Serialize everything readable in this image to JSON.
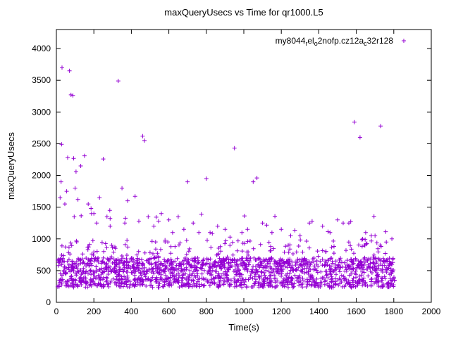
{
  "chart_data": {
    "type": "scatter",
    "title": "maxQueryUsecs vs Time for qr1000.L5",
    "xlabel": "Time(s)",
    "ylabel": "maxQueryUsecs",
    "xlim": [
      0,
      2000
    ],
    "ylim": [
      0,
      4300
    ],
    "xticks": [
      0,
      200,
      400,
      600,
      800,
      1000,
      1200,
      1400,
      1600,
      1800,
      2000
    ],
    "yticks": [
      0,
      500,
      1000,
      1500,
      2000,
      2500,
      3000,
      3500,
      4000
    ],
    "grid": false,
    "legend": {
      "position": "top-right",
      "label_plain": "my8044_rel_o2nofp.cz12a_c32r128",
      "segments": [
        {
          "text": "my8044"
        },
        {
          "text": "r",
          "sub": true
        },
        {
          "text": "el"
        },
        {
          "text": "o",
          "sub": true
        },
        {
          "text": "2nofp.cz12a"
        },
        {
          "text": "c",
          "sub": true
        },
        {
          "text": "32r128"
        }
      ]
    },
    "marker": {
      "shape": "plus",
      "color": "#9400d3",
      "size": 3
    },
    "seed": 42,
    "clusters": [
      {
        "count": 850,
        "x": [
          5,
          1805
        ],
        "y": [
          470,
          700
        ]
      },
      {
        "count": 600,
        "x": [
          5,
          1805
        ],
        "y": [
          235,
          390
        ]
      },
      {
        "count": 160,
        "x": [
          5,
          1805
        ],
        "y": [
          390,
          470
        ]
      },
      {
        "count": 140,
        "x": [
          5,
          1805
        ],
        "y": [
          700,
          1000
        ]
      },
      {
        "count": 18,
        "x": [
          30,
          1805
        ],
        "y": [
          1000,
          1400
        ]
      }
    ],
    "outliers": [
      [
        20,
        1650
      ],
      [
        25,
        1900
      ],
      [
        28,
        2490
      ],
      [
        30,
        3700
      ],
      [
        45,
        1550
      ],
      [
        55,
        1750
      ],
      [
        60,
        2280
      ],
      [
        70,
        3650
      ],
      [
        78,
        3270
      ],
      [
        88,
        3260
      ],
      [
        92,
        2270
      ],
      [
        95,
        1350
      ],
      [
        100,
        1800
      ],
      [
        105,
        2060
      ],
      [
        115,
        1620
      ],
      [
        130,
        2150
      ],
      [
        150,
        2310
      ],
      [
        170,
        1550
      ],
      [
        185,
        1480
      ],
      [
        200,
        1400
      ],
      [
        215,
        1250
      ],
      [
        230,
        1650
      ],
      [
        250,
        2260
      ],
      [
        270,
        1350
      ],
      [
        285,
        1450
      ],
      [
        330,
        3490
      ],
      [
        350,
        1800
      ],
      [
        365,
        1250
      ],
      [
        380,
        1600
      ],
      [
        420,
        1670
      ],
      [
        440,
        1280
      ],
      [
        460,
        2620
      ],
      [
        470,
        2550
      ],
      [
        490,
        1350
      ],
      [
        520,
        1200
      ],
      [
        545,
        1280
      ],
      [
        560,
        1400
      ],
      [
        600,
        1300
      ],
      [
        620,
        1100
      ],
      [
        650,
        1350
      ],
      [
        680,
        1150
      ],
      [
        700,
        1900
      ],
      [
        730,
        1250
      ],
      [
        760,
        1100
      ],
      [
        800,
        1950
      ],
      [
        820,
        1100
      ],
      [
        860,
        1200
      ],
      [
        900,
        1150
      ],
      [
        950,
        2430
      ],
      [
        990,
        1100
      ],
      [
        1020,
        1150
      ],
      [
        1050,
        1900
      ],
      [
        1070,
        1960
      ],
      [
        1100,
        1250
      ],
      [
        1150,
        1100
      ],
      [
        1200,
        1150
      ],
      [
        1250,
        1050
      ],
      [
        1300,
        1050
      ],
      [
        1350,
        1250
      ],
      [
        1420,
        1200
      ],
      [
        1460,
        1100
      ],
      [
        1500,
        1300
      ],
      [
        1530,
        1250
      ],
      [
        1560,
        1250
      ],
      [
        1590,
        2840
      ],
      [
        1620,
        2600
      ],
      [
        1650,
        1100
      ],
      [
        1680,
        1050
      ],
      [
        1700,
        1050
      ],
      [
        1730,
        2780
      ],
      [
        1760,
        950
      ],
      [
        1790,
        1000
      ]
    ]
  }
}
